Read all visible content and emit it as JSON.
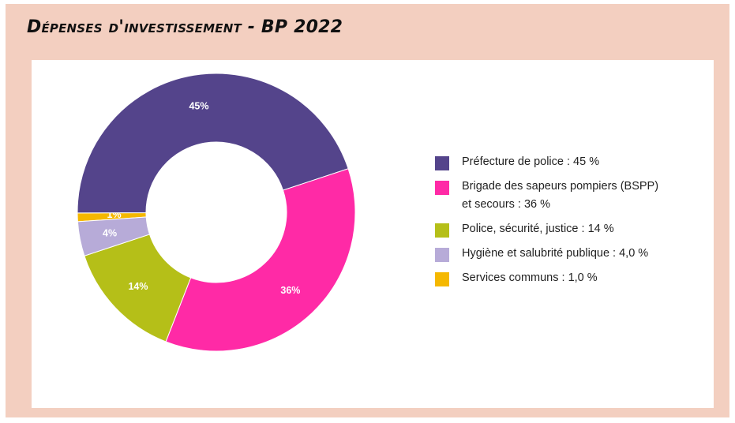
{
  "title": "Dépenses d'investissement - BP 2022",
  "chart_data": {
    "type": "pie",
    "donut": true,
    "start_series_order": [
      "Services communs",
      "Préfecture de police",
      "Brigade des sapeurs pompiers (BSPP) et secours",
      "Police, sécurité, justice",
      "Hygiène et salubrité publique"
    ],
    "slices": [
      {
        "name": "Préfecture de police",
        "value": 45,
        "label": "45%",
        "legend": "Préfecture de police : 45  %",
        "color": "#54448b"
      },
      {
        "name": "Brigade des sapeurs pompiers (BSPP) et secours",
        "value": 36,
        "label": "36%",
        "legend": "Brigade des sapeurs pompiers (BSPP)\net secours : 36  %",
        "color": "#ff2aa6"
      },
      {
        "name": "Police, sécurité, justice",
        "value": 14,
        "label": "14%",
        "legend": "Police, sécurité, justice : 14  %",
        "color": "#b5bf18"
      },
      {
        "name": "Hygiène et salubrité publique",
        "value": 4.0,
        "label": "4%",
        "legend": "Hygiène et salubrité publique : 4,0  %",
        "color": "#b7abd8"
      },
      {
        "name": "Services communs",
        "value": 1.0,
        "label": "1%",
        "legend": "Services communs : 1,0  %",
        "color": "#f5b800"
      }
    ],
    "legend_position": "right"
  }
}
